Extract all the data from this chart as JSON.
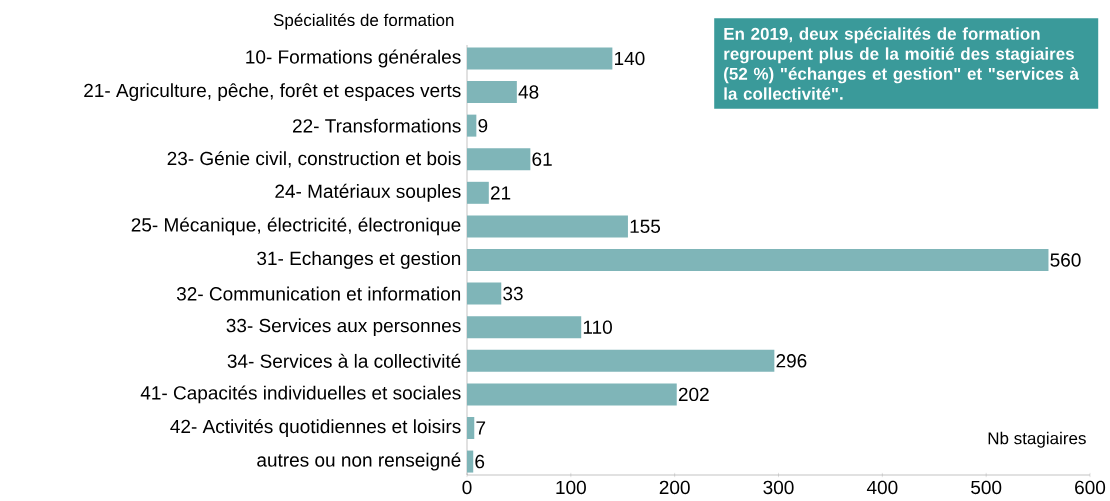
{
  "chart_data": {
    "type": "bar",
    "orientation": "horizontal",
    "ylabel": "Spécialités de formation",
    "xlabel": "Nb stagiaires",
    "categories": [
      "10- Formations générales",
      "21- Agriculture, pêche, forêt et espaces verts",
      "22- Transformations",
      "23- Génie civil, construction et bois",
      "24- Matériaux souples",
      "25- Mécanique, électricité, électronique",
      "31- Echanges et gestion",
      "32- Communication et information",
      "33- Services aux personnes",
      "34- Services à la collectivité",
      "41- Capacités individuelles et sociales",
      "42- Activités quotidiennes et loisirs",
      "autres ou non renseigné"
    ],
    "values": [
      140,
      48,
      9,
      61,
      21,
      155,
      560,
      33,
      110,
      296,
      202,
      7,
      6
    ],
    "color": "#7fb5b8",
    "data_labels": true,
    "xlim": [
      0,
      600
    ],
    "xticks": [
      0,
      100,
      200,
      300,
      400,
      500,
      600
    ],
    "annotations": [
      "En 2019, deux spécialités de formation regroupent plus de la moitié des stagiaires (52 %) \"échanges et gestion\" et \"services à la collectivité\"."
    ]
  }
}
